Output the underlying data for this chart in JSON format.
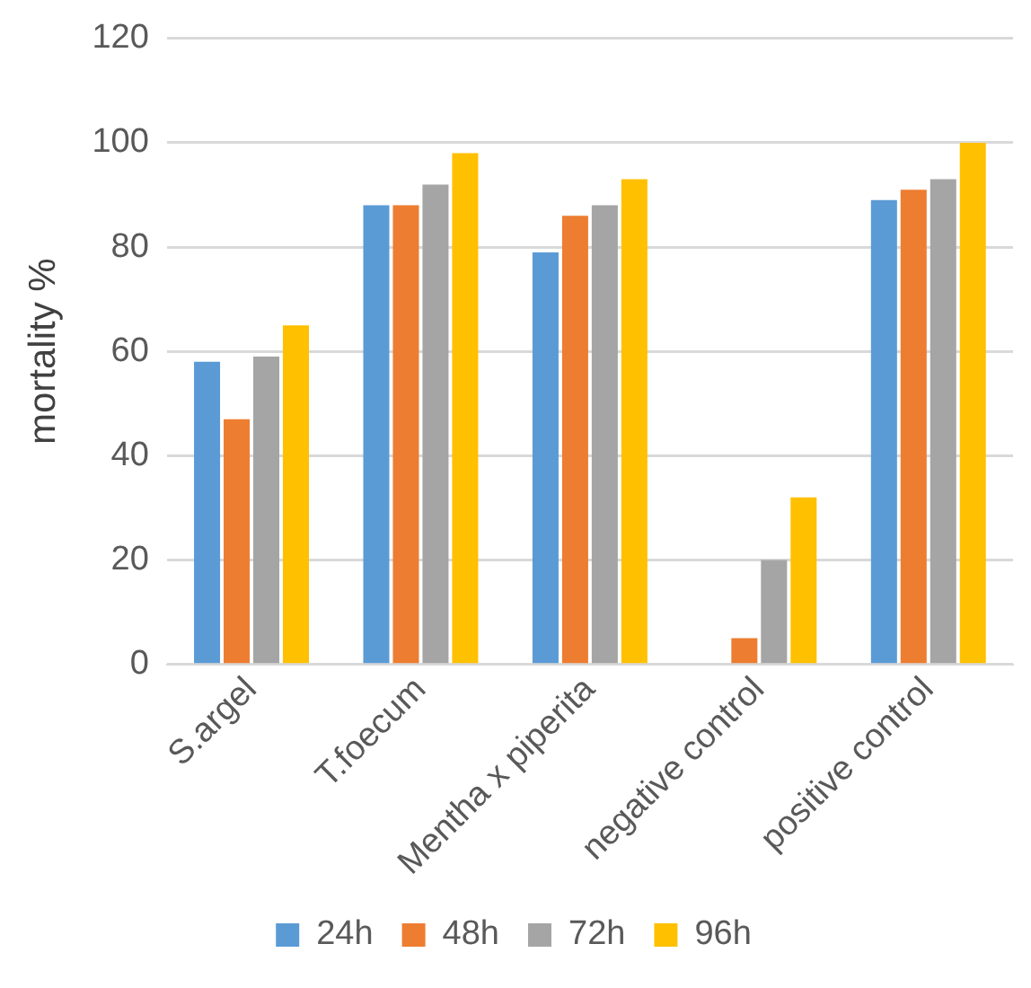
{
  "chart_data": {
    "type": "bar",
    "ylabel": "mortality %",
    "categories": [
      "S.argel",
      "T.foecum",
      "Mentha x piperita",
      "negative control",
      "positive control"
    ],
    "series": [
      {
        "name": "24h",
        "color": "#5b9bd5",
        "values": [
          58,
          88,
          79,
          0,
          89
        ]
      },
      {
        "name": "48h",
        "color": "#ed7d31",
        "values": [
          47,
          88,
          86,
          5,
          91
        ]
      },
      {
        "name": "72h",
        "color": "#a5a5a5",
        "values": [
          59,
          92,
          88,
          20,
          93
        ]
      },
      {
        "name": "96h",
        "color": "#ffc000",
        "values": [
          65,
          98,
          93,
          32,
          100
        ]
      }
    ],
    "ylim": [
      0,
      120
    ],
    "yticks": [
      0,
      20,
      40,
      60,
      80,
      100,
      120
    ],
    "grid": "y",
    "legend": "bottom"
  }
}
